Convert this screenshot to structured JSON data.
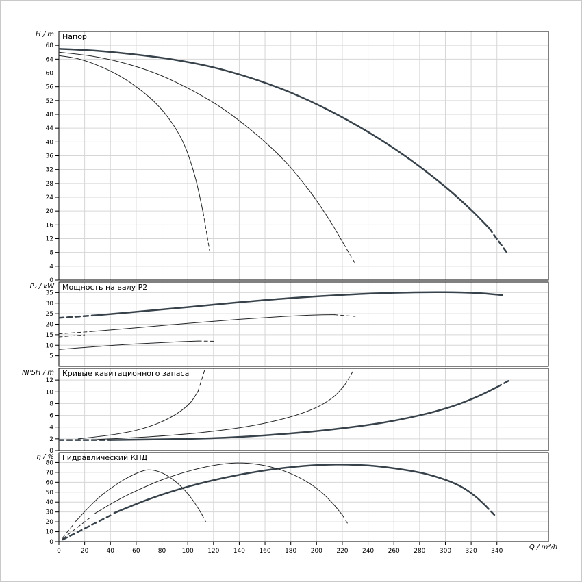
{
  "colors": {
    "background": "#ffffff",
    "grid": "#d6d6d6",
    "axis": "#000000",
    "text": "#000000",
    "curve_thick": "#37424b",
    "curve_thin": "#222527"
  },
  "chart_data": {
    "type": "line",
    "x_axis": {
      "label": "Q / m³/h",
      "lim": [
        0,
        380
      ],
      "ticks": [
        0,
        20,
        40,
        60,
        80,
        100,
        120,
        140,
        160,
        180,
        200,
        220,
        240,
        260,
        280,
        300,
        320,
        340
      ]
    },
    "panels": [
      {
        "title": "Напор",
        "ylabel": "H / m",
        "ylim": [
          0,
          72
        ],
        "yticks": [
          0,
          4,
          8,
          12,
          16,
          20,
          24,
          28,
          32,
          36,
          40,
          44,
          48,
          52,
          56,
          60,
          64,
          68
        ],
        "series": [
          {
            "name": "head-curve-min",
            "width": 1,
            "dash": false,
            "points": [
              [
                0,
                65
              ],
              [
                15,
                64.1
              ],
              [
                30,
                62.2
              ],
              [
                45,
                59.6
              ],
              [
                60,
                56
              ],
              [
                75,
                51.3
              ],
              [
                88,
                45.4
              ],
              [
                98,
                38.6
              ],
              [
                106,
                29.5
              ],
              [
                112,
                19.5
              ]
            ]
          },
          {
            "name": "head-curve-min-tail",
            "width": 1,
            "dash": true,
            "points": [
              [
                112,
                19.5
              ],
              [
                117,
                8.5
              ]
            ]
          },
          {
            "name": "head-curve-mid",
            "width": 1,
            "dash": false,
            "points": [
              [
                0,
                66
              ],
              [
                25,
                64.9
              ],
              [
                50,
                62.9
              ],
              [
                75,
                59.9
              ],
              [
                100,
                55.6
              ],
              [
                125,
                50.2
              ],
              [
                150,
                43.2
              ],
              [
                175,
                34.6
              ],
              [
                195,
                25.6
              ],
              [
                210,
                17.4
              ],
              [
                221,
                10.5
              ]
            ]
          },
          {
            "name": "head-curve-mid-tail",
            "width": 1,
            "dash": true,
            "points": [
              [
                221,
                10.5
              ],
              [
                230,
                4.8
              ]
            ]
          },
          {
            "name": "head-curve-max",
            "width": 2.5,
            "dash": false,
            "points": [
              [
                0,
                67
              ],
              [
                30,
                66.4
              ],
              [
                60,
                65.3
              ],
              [
                90,
                63.8
              ],
              [
                120,
                61.6
              ],
              [
                150,
                58.4
              ],
              [
                180,
                54.3
              ],
              [
                210,
                49.1
              ],
              [
                240,
                42.9
              ],
              [
                270,
                35.6
              ],
              [
                300,
                27
              ],
              [
                320,
                20.3
              ],
              [
                334,
                15
              ]
            ]
          },
          {
            "name": "head-curve-max-tail",
            "width": 2.5,
            "dash": true,
            "points": [
              [
                334,
                15
              ],
              [
                348,
                7.8
              ]
            ]
          }
        ]
      },
      {
        "title": "Мощность на валу P2",
        "ylabel": "P₂ / kW",
        "ylim": [
          0,
          40
        ],
        "yticks": [
          5,
          10,
          15,
          20,
          25,
          30,
          35
        ],
        "series": [
          {
            "name": "p2-curve-max-lead",
            "width": 2.5,
            "dash": true,
            "points": [
              [
                0,
                23
              ],
              [
                28,
                24.2
              ]
            ]
          },
          {
            "name": "p2-curve-max",
            "width": 2.5,
            "dash": false,
            "points": [
              [
                28,
                24.2
              ],
              [
                60,
                25.9
              ],
              [
                100,
                28.1
              ],
              [
                140,
                30.4
              ],
              [
                180,
                32.4
              ],
              [
                220,
                33.9
              ],
              [
                260,
                34.9
              ],
              [
                300,
                35.2
              ],
              [
                325,
                34.8
              ],
              [
                344,
                33.8
              ]
            ]
          },
          {
            "name": "p2-curve-mid-lead",
            "width": 1,
            "dash": true,
            "points": [
              [
                0,
                15.4
              ],
              [
                25,
                16.5
              ]
            ]
          },
          {
            "name": "p2-curve-mid",
            "width": 1,
            "dash": false,
            "points": [
              [
                25,
                16.5
              ],
              [
                60,
                18.3
              ],
              [
                100,
                20.4
              ],
              [
                140,
                22.3
              ],
              [
                175,
                23.7
              ],
              [
                200,
                24.4
              ],
              [
                214,
                24.5
              ]
            ]
          },
          {
            "name": "p2-curve-mid-tail",
            "width": 1,
            "dash": true,
            "points": [
              [
                214,
                24.5
              ],
              [
                230,
                23.7
              ]
            ]
          },
          {
            "name": "p2-curve-lead-extra",
            "width": 1,
            "dash": true,
            "points": [
              [
                0,
                14
              ],
              [
                20,
                14.9
              ]
            ]
          },
          {
            "name": "p2-curve-min",
            "width": 1,
            "dash": false,
            "points": [
              [
                0,
                8
              ],
              [
                25,
                9.2
              ],
              [
                50,
                10.3
              ],
              [
                75,
                11.1
              ],
              [
                95,
                11.7
              ],
              [
                108,
                12
              ]
            ]
          },
          {
            "name": "p2-curve-min-tail",
            "width": 1,
            "dash": true,
            "points": [
              [
                108,
                12
              ],
              [
                120,
                11.9
              ]
            ]
          }
        ]
      },
      {
        "title": "Кривые кавитационного запаса",
        "ylabel": "NPSH / m",
        "ylim": [
          0,
          14
        ],
        "yticks": [
          0,
          2,
          4,
          6,
          8,
          10,
          12
        ],
        "series": [
          {
            "name": "npsh-curve-max-lead",
            "width": 2.5,
            "dash": true,
            "points": [
              [
                0,
                1.8
              ],
              [
                40,
                1.8
              ]
            ]
          },
          {
            "name": "npsh-curve-max",
            "width": 2.5,
            "dash": false,
            "points": [
              [
                40,
                1.8
              ],
              [
                90,
                1.95
              ],
              [
                130,
                2.2
              ],
              [
                170,
                2.75
              ],
              [
                210,
                3.55
              ],
              [
                250,
                4.7
              ],
              [
                280,
                6
              ],
              [
                305,
                7.5
              ],
              [
                325,
                9.2
              ],
              [
                340,
                10.8
              ]
            ]
          },
          {
            "name": "npsh-curve-max-tail",
            "width": 2.5,
            "dash": true,
            "points": [
              [
                340,
                10.8
              ],
              [
                350,
                12
              ]
            ]
          },
          {
            "name": "npsh-curve-mid",
            "width": 1,
            "dash": false,
            "points": [
              [
                30,
                1.9
              ],
              [
                70,
                2.35
              ],
              [
                110,
                3.05
              ],
              [
                145,
                4.05
              ],
              [
                175,
                5.45
              ],
              [
                198,
                7.15
              ],
              [
                213,
                9.1
              ],
              [
                222,
                11.2
              ]
            ]
          },
          {
            "name": "npsh-curve-mid-tail",
            "width": 1,
            "dash": true,
            "points": [
              [
                222,
                11.2
              ],
              [
                228,
                13.4
              ]
            ]
          },
          {
            "name": "npsh-curve-min",
            "width": 1,
            "dash": false,
            "points": [
              [
                15,
                2
              ],
              [
                40,
                2.65
              ],
              [
                60,
                3.45
              ],
              [
                78,
                4.75
              ],
              [
                92,
                6.35
              ],
              [
                102,
                8.15
              ],
              [
                108,
                10.1
              ]
            ]
          },
          {
            "name": "npsh-curve-min-tail",
            "width": 1,
            "dash": true,
            "points": [
              [
                108,
                10.1
              ],
              [
                113,
                13.6
              ]
            ]
          }
        ]
      },
      {
        "title": "Гидравлический КПД",
        "ylabel": "η / %",
        "ylim": [
          0,
          90
        ],
        "yticks": [
          0,
          10,
          20,
          30,
          40,
          50,
          60,
          70,
          80
        ],
        "series": [
          {
            "name": "eta-curve-max-lead",
            "width": 2.5,
            "dash": true,
            "points": [
              [
                3,
                2
              ],
              [
                40,
                26.5
              ]
            ]
          },
          {
            "name": "eta-curve-max",
            "width": 2.5,
            "dash": false,
            "points": [
              [
                43,
                29
              ],
              [
                70,
                43
              ],
              [
                100,
                55.5
              ],
              [
                130,
                65
              ],
              [
                160,
                72
              ],
              [
                190,
                76.5
              ],
              [
                215,
                78
              ],
              [
                240,
                77
              ],
              [
                262,
                73.8
              ],
              [
                283,
                69
              ],
              [
                300,
                62.5
              ],
              [
                313,
                55
              ],
              [
                323,
                46
              ],
              [
                331,
                36.5
              ]
            ]
          },
          {
            "name": "eta-curve-max-tail",
            "width": 2.5,
            "dash": true,
            "points": [
              [
                331,
                36.5
              ],
              [
                338,
                27
              ]
            ]
          },
          {
            "name": "eta-curve-mid-lead",
            "width": 1,
            "dash": true,
            "points": [
              [
                3,
                3
              ],
              [
                26,
                26
              ]
            ]
          },
          {
            "name": "eta-curve-mid",
            "width": 1,
            "dash": false,
            "points": [
              [
                28,
                28.5
              ],
              [
                45,
                41.5
              ],
              [
                62,
                52.5
              ],
              [
                80,
                62.5
              ],
              [
                100,
                71
              ],
              [
                120,
                77
              ],
              [
                138,
                79.5
              ],
              [
                155,
                78
              ],
              [
                170,
                73.5
              ],
              [
                183,
                67
              ],
              [
                195,
                58.5
              ],
              [
                205,
                48.5
              ],
              [
                213,
                38
              ],
              [
                220,
                27
              ]
            ]
          },
          {
            "name": "eta-curve-mid-tail",
            "width": 1,
            "dash": true,
            "points": [
              [
                220,
                27
              ],
              [
                224,
                18.5
              ]
            ]
          },
          {
            "name": "eta-curve-min-lead",
            "width": 1,
            "dash": true,
            "points": [
              [
                3,
                4
              ],
              [
                12,
                18.5
              ]
            ]
          },
          {
            "name": "eta-curve-min",
            "width": 1,
            "dash": false,
            "points": [
              [
                13,
                20.5
              ],
              [
                22,
                33
              ],
              [
                31,
                44.5
              ],
              [
                41,
                54.5
              ],
              [
                51,
                63
              ],
              [
                61,
                69.5
              ],
              [
                69,
                72.5
              ],
              [
                77,
                71
              ],
              [
                85,
                66
              ],
              [
                93,
                58
              ],
              [
                100,
                48.5
              ],
              [
                106,
                38
              ],
              [
                111,
                27.5
              ]
            ]
          },
          {
            "name": "eta-curve-min-tail",
            "width": 1,
            "dash": true,
            "points": [
              [
                111,
                27.5
              ],
              [
                114,
                20
              ]
            ]
          }
        ]
      }
    ]
  }
}
